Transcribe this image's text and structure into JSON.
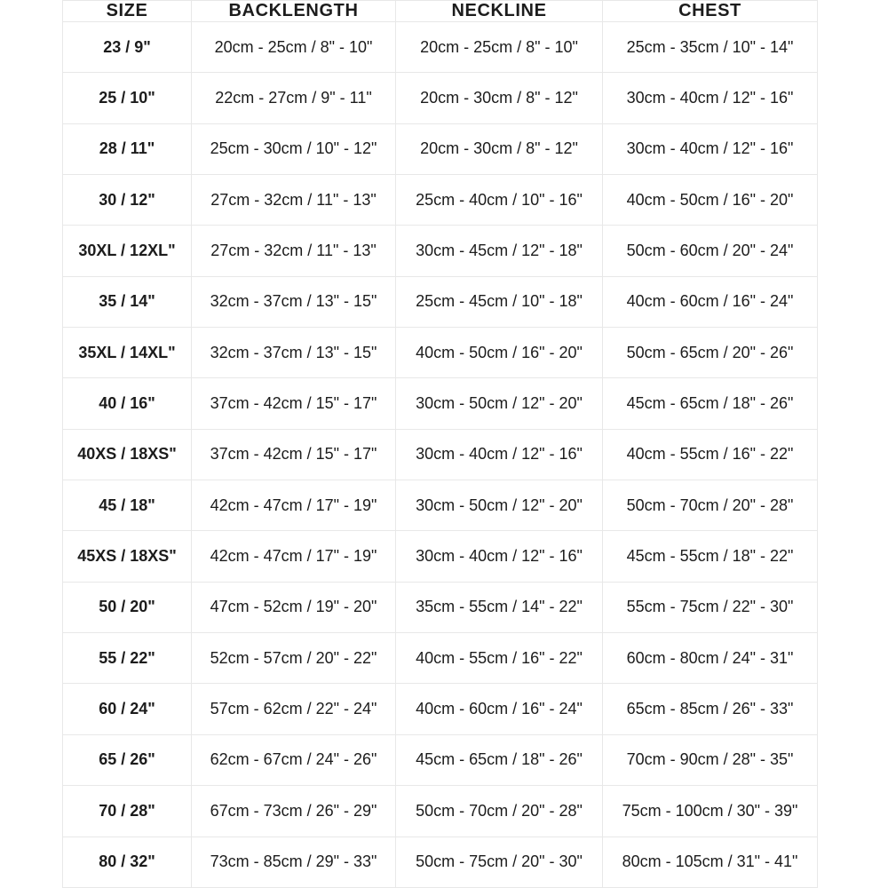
{
  "chart_data": {
    "type": "table",
    "headers": [
      "SIZE",
      "BACKLENGTH",
      "NECKLINE",
      "CHEST"
    ],
    "column_keys": [
      "size",
      "backlength",
      "neckline",
      "chest"
    ],
    "rows": [
      [
        "23 / 9\"",
        "20cm - 25cm / 8\" - 10\"",
        "20cm - 25cm / 8\" - 10\"",
        "25cm - 35cm / 10\" - 14\""
      ],
      [
        "25 / 10\"",
        "22cm - 27cm / 9\" - 11\"",
        "20cm - 30cm / 8\" - 12\"",
        "30cm - 40cm / 12\" - 16\""
      ],
      [
        "28 / 11\"",
        "25cm - 30cm / 10\" - 12\"",
        "20cm - 30cm / 8\" - 12\"",
        "30cm - 40cm / 12\" - 16\""
      ],
      [
        "30 / 12\"",
        "27cm - 32cm / 11\" - 13\"",
        "25cm - 40cm / 10\" - 16\"",
        "40cm - 50cm / 16\" - 20\""
      ],
      [
        "30XL / 12XL\"",
        "27cm - 32cm / 11\" - 13\"",
        "30cm - 45cm / 12\" - 18\"",
        "50cm - 60cm / 20\" - 24\""
      ],
      [
        "35 / 14\"",
        "32cm - 37cm / 13\" - 15\"",
        "25cm - 45cm / 10\" - 18\"",
        "40cm - 60cm / 16\" - 24\""
      ],
      [
        "35XL / 14XL\"",
        "32cm - 37cm / 13\" - 15\"",
        "40cm - 50cm / 16\" - 20\"",
        "50cm - 65cm / 20\" - 26\""
      ],
      [
        "40 / 16\"",
        "37cm - 42cm / 15\" - 17\"",
        "30cm - 50cm / 12\" - 20\"",
        "45cm - 65cm / 18\" - 26\""
      ],
      [
        "40XS / 18XS\"",
        "37cm - 42cm / 15\" - 17\"",
        "30cm - 40cm / 12\" - 16\"",
        "40cm - 55cm / 16\" - 22\""
      ],
      [
        "45 / 18\"",
        "42cm - 47cm / 17\" - 19\"",
        "30cm - 50cm / 12\" - 20\"",
        "50cm - 70cm / 20\" - 28\""
      ],
      [
        "45XS / 18XS\"",
        "42cm - 47cm / 17\" - 19\"",
        "30cm - 40cm / 12\" - 16\"",
        "45cm - 55cm / 18\" - 22\""
      ],
      [
        "50 / 20\"",
        "47cm - 52cm / 19\" - 20\"",
        "35cm - 55cm / 14\" - 22\"",
        "55cm - 75cm / 22\" - 30\""
      ],
      [
        "55 / 22\"",
        "52cm - 57cm / 20\" - 22\"",
        "40cm - 55cm / 16\" - 22\"",
        "60cm - 80cm / 24\" - 31\""
      ],
      [
        "60 / 24\"",
        "57cm - 62cm / 22\" - 24\"",
        "40cm - 60cm / 16\" - 24\"",
        "65cm - 85cm / 26\" - 33\""
      ],
      [
        "65 / 26\"",
        "62cm - 67cm / 24\" - 26\"",
        "45cm - 65cm / 18\" - 26\"",
        "70cm - 90cm / 28\" - 35\""
      ],
      [
        "70 / 28\"",
        "67cm - 73cm / 26\" - 29\"",
        "50cm - 70cm / 20\" - 28\"",
        "75cm - 100cm / 30\" - 39\""
      ],
      [
        "80 / 32\"",
        "73cm - 85cm / 29\" - 33\"",
        "50cm - 75cm / 20\" - 30\"",
        "80cm - 105cm / 31\" - 41\""
      ]
    ],
    "layout": {
      "grid": "on",
      "header_position": "top"
    }
  },
  "colors": {
    "text": "#1c1c1c",
    "border": "#e8e8e8",
    "background": "#ffffff"
  }
}
